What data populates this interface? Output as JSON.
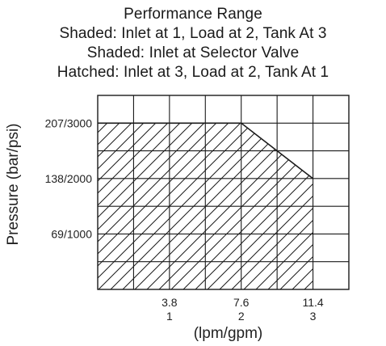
{
  "chart_data": {
    "type": "area",
    "title_lines": [
      "Performance Range",
      "Shaded: Inlet at 1, Load at 2, Tank At 3",
      "Shaded: Inlet at Selector Valve",
      "Hatched: Inlet at 3, Load at 2, Tank At 1"
    ],
    "ylabel": "Pressure (bar/psi)",
    "xlabel": "(lpm/gpm)",
    "x_ticks": [
      {
        "value": 3.8,
        "metric": "3.8",
        "imperial": "1"
      },
      {
        "value": 7.6,
        "metric": "7.6",
        "imperial": "2"
      },
      {
        "value": 11.4,
        "metric": "11.4",
        "imperial": "3"
      }
    ],
    "y_ticks": [
      {
        "value": 69,
        "label": "69/1000"
      },
      {
        "value": 138,
        "label": "138/2000"
      },
      {
        "value": 207,
        "label": "207/3000"
      }
    ],
    "xlim": [
      0,
      13.3
    ],
    "ylim": [
      0,
      241.5
    ],
    "grid": true,
    "fill": "hatched",
    "region": {
      "x": [
        0,
        0,
        7.6,
        11.4,
        11.4
      ],
      "y": [
        0,
        207,
        207,
        138,
        0
      ]
    }
  }
}
